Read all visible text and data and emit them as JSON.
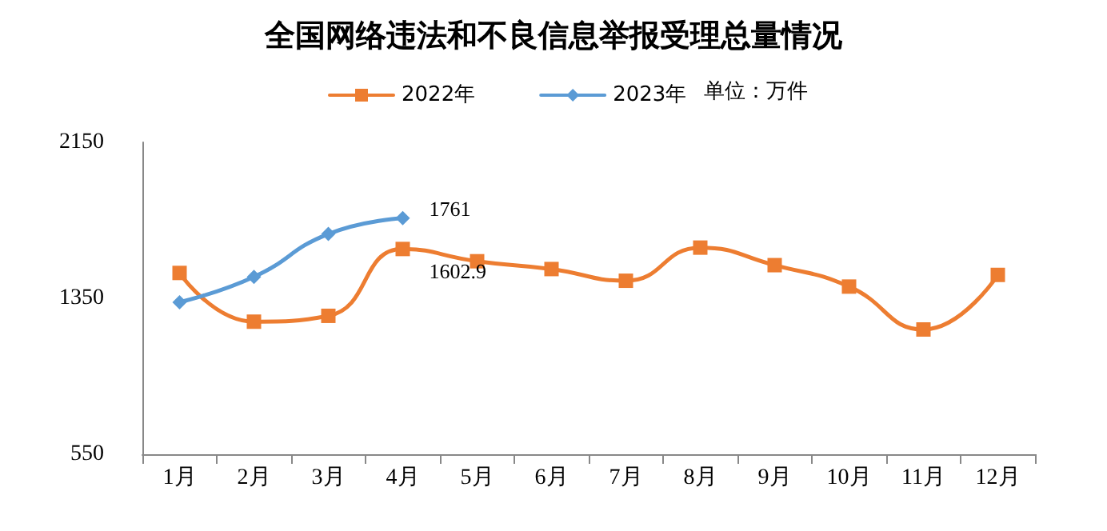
{
  "chart_data": {
    "type": "line",
    "title": "全国网络违法和不良信息举报受理总量情况",
    "categories": [
      "1月",
      "2月",
      "3月",
      "4月",
      "5月",
      "6月",
      "7月",
      "8月",
      "9月",
      "10月",
      "11月",
      "12月"
    ],
    "series": [
      {
        "name": "2022年",
        "color": "#ed7d31",
        "marker": "square",
        "values": [
          1480,
          1230,
          1260,
          1602.9,
          1540,
          1500,
          1440,
          1610,
          1520,
          1410,
          1190,
          1470
        ]
      },
      {
        "name": "2023年",
        "color": "#5b9bd5",
        "marker": "diamond",
        "values": [
          1330,
          1460,
          1680,
          1761,
          null,
          null,
          null,
          null,
          null,
          null,
          null,
          null
        ]
      }
    ],
    "annotations": [
      "单位：万件",
      {
        "text": "1761",
        "x": "4月",
        "y": 1761
      },
      {
        "text": "1602.9",
        "x": "4月",
        "y": 1602.9
      }
    ],
    "ylim": [
      550,
      2150
    ],
    "yticks": [
      550,
      1350,
      2150
    ],
    "grid": false,
    "legend": "top",
    "line_style": "solid"
  }
}
